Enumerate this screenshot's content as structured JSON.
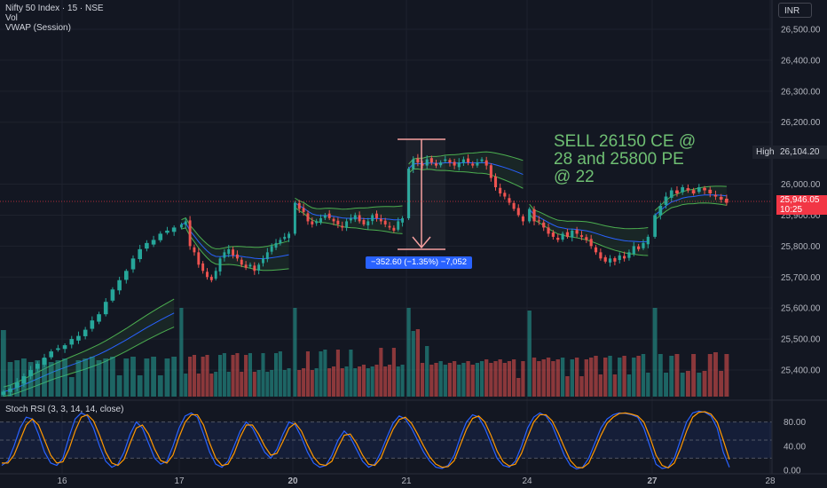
{
  "header": {
    "symbol_line": "Nifty 50 Index · 15 · NSE",
    "vol_label": "Vol",
    "vwap_label": "VWAP (Session)"
  },
  "currency": "INR",
  "annotation": {
    "line1": "SELL 26150 CE  @",
    "line2": "28 and 25800 PE",
    "line3": "@ 22"
  },
  "high": {
    "label": "High",
    "value": "26,104.20"
  },
  "last_price": {
    "value": "25,946.05",
    "countdown": "10:25"
  },
  "measure_label": "−352.60 (−1.35%) −7,052",
  "rsi_label": "Stoch RSI (3, 3, 14, 14, close)",
  "colors": {
    "up": "#26a69a",
    "down": "#ef5350",
    "vwap": "#2962ff",
    "band": "#4caf50",
    "k": "#2962ff",
    "d": "#ff9800",
    "annotation": "#6fbf73"
  },
  "chart_data": {
    "type": "candlestick",
    "x_tick_labels": [
      "16",
      "17",
      "20",
      "21",
      "24",
      "27",
      "28"
    ],
    "y_tick_labels": [
      "26,500.00",
      "26,400.00",
      "26,300.00",
      "26,200.00",
      "26,000.00",
      "25,900.00",
      "25,800.00",
      "25,700.00",
      "25,600.00",
      "25,500.00",
      "25,400.00"
    ],
    "y_ticks": [
      26500,
      26400,
      26300,
      26200,
      26000,
      25900,
      25800,
      25700,
      25600,
      25500,
      25400
    ],
    "ylim": [
      25325,
      26560
    ],
    "session_closes": [
      [
        25330,
        25340,
        25360,
        25380,
        25400,
        25420,
        25440,
        25460,
        25470,
        25480,
        25500,
        25510,
        25530,
        25560,
        25580,
        25620,
        25660,
        25690,
        25720,
        25760,
        25790,
        25810,
        25820,
        25840,
        25850,
        25860
      ],
      [
        25870,
        25880,
        25800,
        25780,
        25740,
        25720,
        25700,
        25690,
        25720,
        25760,
        25780,
        25790,
        25770,
        25760,
        25740,
        25730,
        25740,
        25720,
        25740,
        25760,
        25780,
        25800,
        25810,
        25820,
        25830,
        25840
      ],
      [
        25940,
        25920,
        25910,
        25880,
        25870,
        25880,
        25890,
        25900,
        25890,
        25880,
        25870,
        25860,
        25880,
        25890,
        25900,
        25880,
        25870,
        25880,
        25900,
        25890,
        25880,
        25870,
        25860,
        25850,
        25880,
        25890
      ],
      [
        26050,
        26080,
        26070,
        26060,
        26080,
        26070,
        26060,
        26070,
        26080,
        26070,
        26060,
        26070,
        26080,
        26070,
        26060,
        26070,
        26080,
        26060,
        26020,
        25990,
        25970,
        25960,
        25940,
        25920,
        25900,
        25880
      ],
      [
        25920,
        25880,
        25880,
        25860,
        25840,
        25830,
        25820,
        25840,
        25830,
        25850,
        25840,
        25830,
        25820,
        25800,
        25780,
        25760,
        25750,
        25760,
        25750,
        25770,
        25760,
        25780,
        25800,
        25790,
        25810,
        25830
      ],
      [
        25900,
        25930,
        25960,
        25980,
        25970,
        25990,
        25980,
        25970,
        25990,
        25980,
        25970,
        25960,
        25950,
        25940
      ]
    ],
    "stoch_rsi": {
      "levels": [
        80,
        50,
        20
      ],
      "y_tick_labels": [
        "80.00",
        "40.00",
        "0.00"
      ],
      "y_ticks": [
        80,
        40,
        0
      ],
      "k": [
        8,
        15,
        40,
        70,
        88,
        85,
        60,
        30,
        12,
        8,
        20,
        55,
        85,
        95,
        90,
        70,
        40,
        15,
        5,
        10,
        30,
        60,
        80,
        70,
        45,
        20,
        10,
        15,
        40,
        70,
        90,
        95,
        88,
        60,
        30,
        10,
        5,
        15,
        40,
        65,
        80,
        70,
        50,
        30,
        20,
        35,
        60,
        80,
        75,
        55,
        30,
        12,
        5,
        8,
        25,
        50,
        65,
        55,
        35,
        15,
        5,
        10,
        30,
        55,
        78,
        90,
        85,
        70,
        50,
        30,
        15,
        5,
        3,
        8,
        25,
        55,
        80,
        92,
        88,
        70,
        45,
        20,
        8,
        5,
        15,
        40,
        70,
        88,
        95,
        90,
        75,
        50,
        25,
        8,
        2,
        5,
        20,
        45,
        70,
        85,
        92,
        95,
        94,
        92,
        88,
        70,
        40,
        10,
        3,
        5,
        20,
        50,
        80,
        95,
        98,
        96,
        90,
        70,
        30,
        5
      ],
      "d": [
        12,
        12,
        25,
        50,
        75,
        85,
        75,
        50,
        25,
        12,
        14,
        35,
        65,
        88,
        92,
        82,
        58,
        30,
        12,
        8,
        18,
        45,
        70,
        75,
        60,
        35,
        16,
        12,
        25,
        55,
        80,
        92,
        92,
        75,
        45,
        20,
        8,
        10,
        28,
        55,
        75,
        75,
        60,
        40,
        25,
        28,
        48,
        70,
        78,
        65,
        42,
        22,
        10,
        8,
        15,
        38,
        58,
        60,
        45,
        25,
        10,
        8,
        20,
        45,
        68,
        84,
        88,
        78,
        60,
        40,
        22,
        10,
        5,
        6,
        16,
        42,
        68,
        86,
        90,
        80,
        58,
        32,
        14,
        7,
        10,
        28,
        55,
        80,
        92,
        92,
        82,
        62,
        38,
        16,
        5,
        4,
        12,
        34,
        58,
        78,
        88,
        94,
        95,
        93,
        90,
        80,
        55,
        25,
        8,
        4,
        12,
        36,
        65,
        88,
        96,
        97,
        93,
        80,
        50,
        18
      ]
    }
  }
}
